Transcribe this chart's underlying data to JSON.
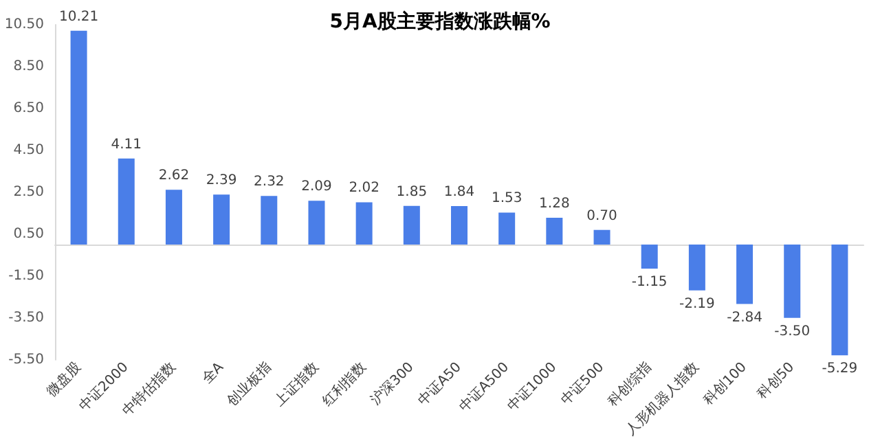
{
  "chart_data": {
    "type": "bar",
    "title": "5月A股主要指数涨跌幅%",
    "categories": [
      "微盘股",
      "中证2000",
      "中特估指数",
      "全A",
      "创业板指",
      "上证指数",
      "红利指数",
      "沪深300",
      "中证A50",
      "中证A500",
      "中证1000",
      "中证500",
      "科创综指",
      "人形机器人指数",
      "科创100",
      "科创50",
      null
    ],
    "values": [
      10.21,
      4.11,
      2.62,
      2.39,
      2.32,
      2.09,
      2.02,
      1.85,
      1.84,
      1.53,
      1.28,
      0.7,
      -1.15,
      -2.19,
      -2.84,
      -3.5,
      -5.29
    ],
    "value_labels": [
      "10.21",
      "4.11",
      "2.62",
      "2.39",
      "2.32",
      "2.09",
      "2.02",
      "1.85",
      "1.84",
      "1.53",
      "1.28",
      "0.70",
      "-1.15",
      "-2.19",
      "-2.84",
      "-3.50",
      "-5.29"
    ],
    "color": "#4a7ee8",
    "ylim": [
      -5.5,
      10.5
    ],
    "yticks": [
      "-5.50",
      "-3.50",
      "-1.50",
      "0.50",
      "2.50",
      "4.50",
      "6.50",
      "8.50",
      "10.50"
    ],
    "grid": false
  }
}
